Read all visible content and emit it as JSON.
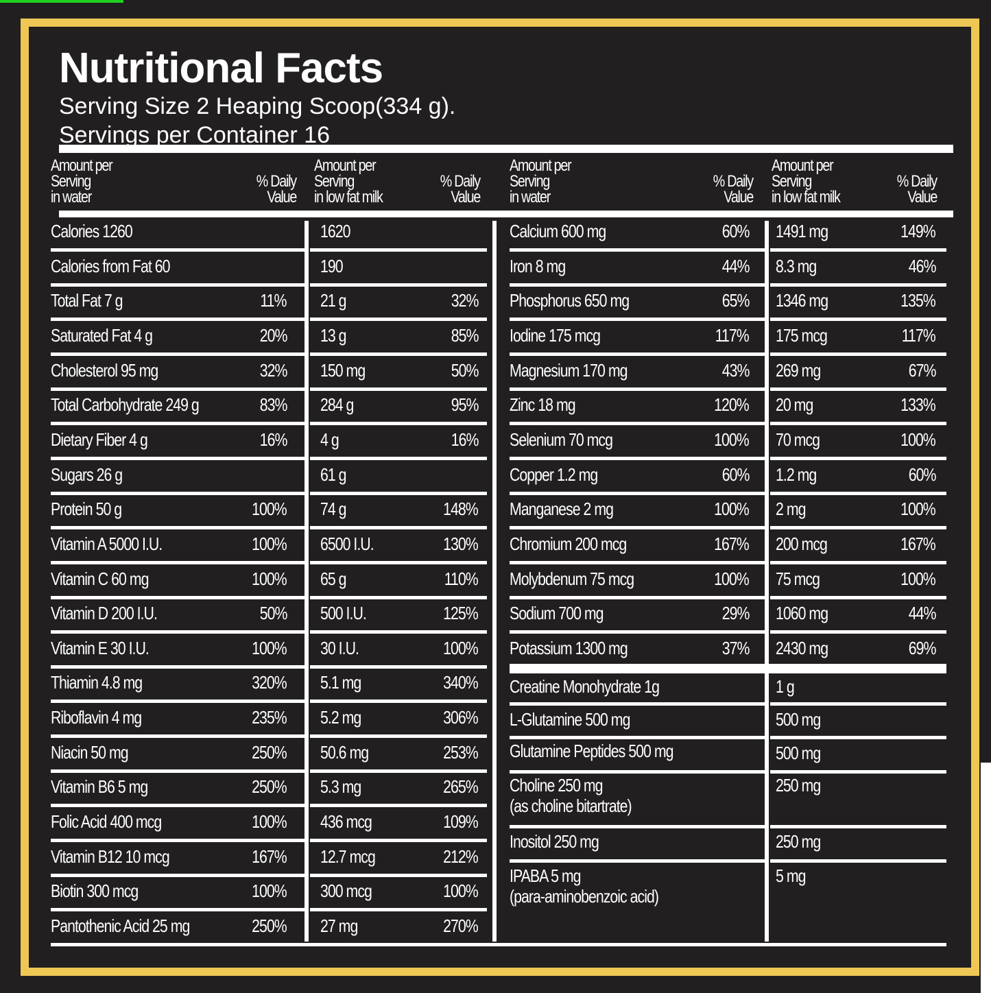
{
  "title": "Nutritional Facts",
  "serving_size": "Serving Size 2 Heaping Scoop(334 g).",
  "servings_per_container": "Servings per Container 16",
  "colors": {
    "background": "#221f20",
    "border": "#eec755",
    "text": "#ffffff",
    "accent_green": "#1fd21f"
  },
  "headers": {
    "water": [
      "Amount per",
      "Serving",
      "in water"
    ],
    "milk": [
      "Amount per",
      "Serving",
      "in low fat milk"
    ],
    "dv": [
      "% Daily",
      "Value"
    ]
  },
  "left_rows": [
    {
      "water": "Calories 1260",
      "water_dv": "",
      "milk": "1620",
      "milk_dv": ""
    },
    {
      "water": "Calories from Fat 60",
      "water_dv": "",
      "milk": "190",
      "milk_dv": ""
    },
    {
      "water": "Total Fat 7 g",
      "water_dv": "11%",
      "milk": "21 g",
      "milk_dv": "32%"
    },
    {
      "water": "Saturated Fat 4 g",
      "water_dv": "20%",
      "milk": "13 g",
      "milk_dv": "85%"
    },
    {
      "water": "Cholesterol 95 mg",
      "water_dv": "32%",
      "milk": "150 mg",
      "milk_dv": "50%"
    },
    {
      "water": "Total Carbohydrate 249 g",
      "water_dv": "83%",
      "milk": "284 g",
      "milk_dv": "95%"
    },
    {
      "water": "Dietary Fiber 4 g",
      "water_dv": "16%",
      "milk": "4 g",
      "milk_dv": "16%"
    },
    {
      "water": "Sugars 26 g",
      "water_dv": "",
      "milk": "61 g",
      "milk_dv": ""
    },
    {
      "water": "Protein 50 g",
      "water_dv": "100%",
      "milk": "74 g",
      "milk_dv": "148%"
    },
    {
      "water": "Vitamin A 5000 I.U.",
      "water_dv": "100%",
      "milk": "6500 I.U.",
      "milk_dv": "130%"
    },
    {
      "water": "Vitamin C 60 mg",
      "water_dv": "100%",
      "milk": "65 g",
      "milk_dv": "110%"
    },
    {
      "water": "Vitamin D 200 I.U.",
      "water_dv": "50%",
      "milk": "500 I.U.",
      "milk_dv": "125%"
    },
    {
      "water": "Vitamin E 30 I.U.",
      "water_dv": "100%",
      "milk": "30 I.U.",
      "milk_dv": "100%"
    },
    {
      "water": "Thiamin 4.8 mg",
      "water_dv": "320%",
      "milk": "5.1 mg",
      "milk_dv": "340%"
    },
    {
      "water": "Riboflavin 4 mg",
      "water_dv": "235%",
      "milk": "5.2 mg",
      "milk_dv": "306%"
    },
    {
      "water": "Niacin 50 mg",
      "water_dv": "250%",
      "milk": "50.6 mg",
      "milk_dv": "253%"
    },
    {
      "water": "Vitamin B6 5 mg",
      "water_dv": "250%",
      "milk": "5.3 mg",
      "milk_dv": "265%"
    },
    {
      "water": "Folic Acid 400 mcg",
      "water_dv": "100%",
      "milk": "436 mcg",
      "milk_dv": "109%"
    },
    {
      "water": "Vitamin B12 10 mcg",
      "water_dv": "167%",
      "milk": "12.7 mcg",
      "milk_dv": "212%"
    },
    {
      "water": "Biotin 300 mcg",
      "water_dv": "100%",
      "milk": "300 mcg",
      "milk_dv": "100%"
    },
    {
      "water": "Pantothenic Acid 25 mg",
      "water_dv": "250%",
      "milk": "27 mg",
      "milk_dv": "270%"
    }
  ],
  "right_rows": [
    {
      "water": "Calcium 600 mg",
      "water_dv": "60%",
      "milk": "1491 mg",
      "milk_dv": "149%"
    },
    {
      "water": "Iron 8 mg",
      "water_dv": "44%",
      "milk": "8.3 mg",
      "milk_dv": "46%"
    },
    {
      "water": "Phosphorus 650 mg",
      "water_dv": "65%",
      "milk": "1346 mg",
      "milk_dv": "135%"
    },
    {
      "water": "Iodine 175 mcg",
      "water_dv": "117%",
      "milk": "175 mcg",
      "milk_dv": "117%"
    },
    {
      "water": "Magnesium 170 mg",
      "water_dv": "43%",
      "milk": "269 mg",
      "milk_dv": "67%"
    },
    {
      "water": "Zinc 18 mg",
      "water_dv": "120%",
      "milk": "20 mg",
      "milk_dv": "133%"
    },
    {
      "water": "Selenium 70 mcg",
      "water_dv": "100%",
      "milk": "70 mcg",
      "milk_dv": "100%"
    },
    {
      "water": "Copper 1.2 mg",
      "water_dv": "60%",
      "milk": "1.2 mg",
      "milk_dv": "60%"
    },
    {
      "water": "Manganese 2 mg",
      "water_dv": "100%",
      "milk": "2 mg",
      "milk_dv": "100%"
    },
    {
      "water": "Chromium 200 mcg",
      "water_dv": "167%",
      "milk": "200 mcg",
      "milk_dv": "167%"
    },
    {
      "water": "Molybdenum 75 mcg",
      "water_dv": "100%",
      "milk": "75 mcg",
      "milk_dv": "100%"
    },
    {
      "water": "Sodium 700 mg",
      "water_dv": "29%",
      "milk": "1060 mg",
      "milk_dv": "44%"
    },
    {
      "water": "Potassium 1300 mg",
      "water_dv": "37%",
      "milk": "2430 mg",
      "milk_dv": "69%"
    }
  ],
  "extra_rows": [
    {
      "water": "Creatine Monohydrate 1g",
      "water2": "",
      "milk": "1 g"
    },
    {
      "water": "L-Glutamine 500 mg",
      "water2": "",
      "milk": "500 mg"
    },
    {
      "water": "Glutamine Peptides 500 mg",
      "water2": "",
      "milk": "500 mg"
    },
    {
      "water": "Choline 250 mg",
      "water2": "(as choline bitartrate)",
      "milk": "250 mg"
    },
    {
      "water": "Inositol 250 mg",
      "water2": "",
      "milk": "250 mg"
    },
    {
      "water": "IPABA 5 mg",
      "water2": "(para-aminobenzoic acid)",
      "milk": "5 mg"
    }
  ]
}
